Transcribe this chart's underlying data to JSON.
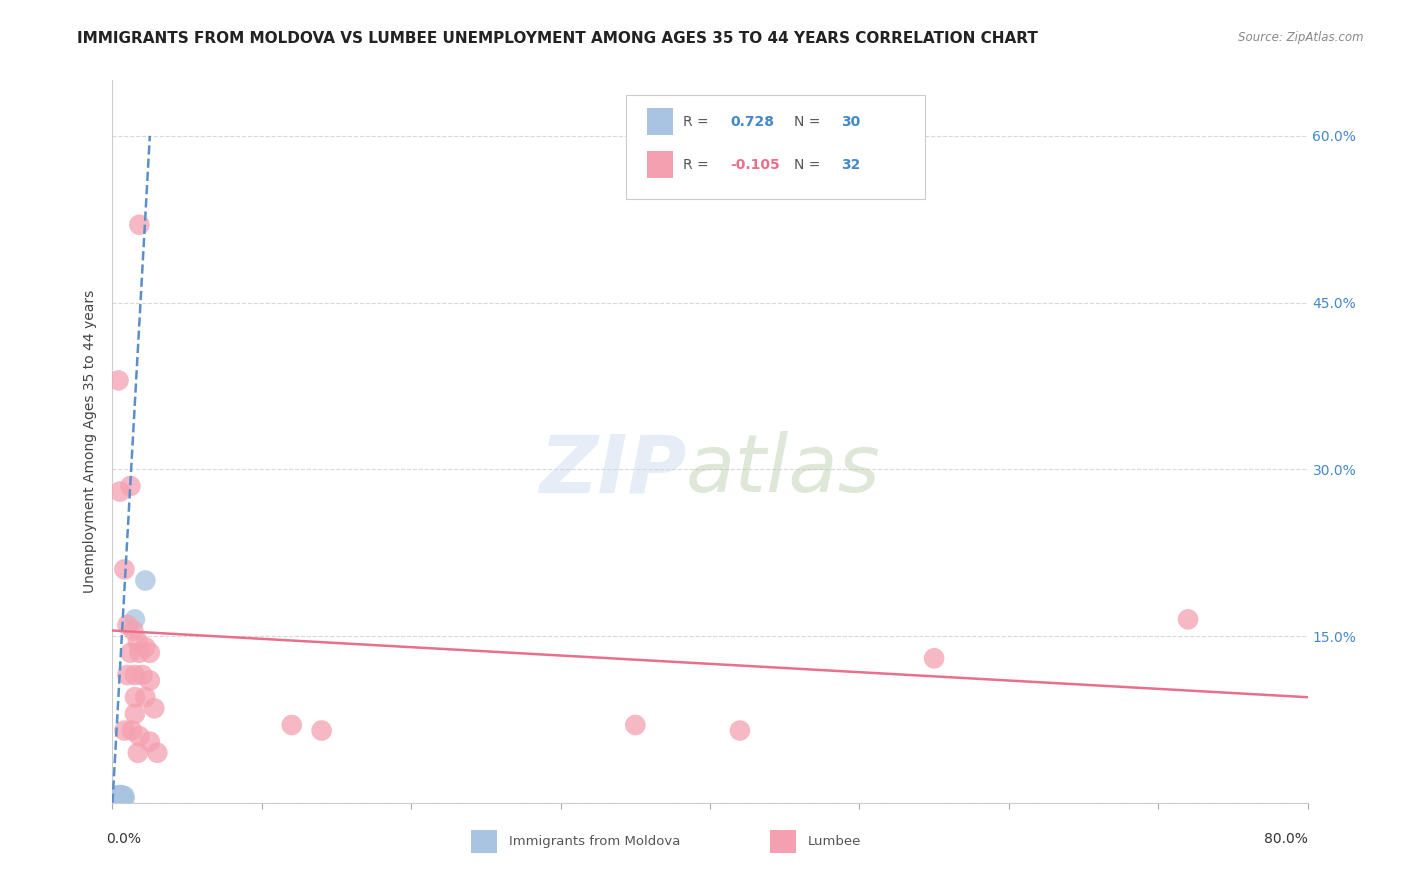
{
  "title": "IMMIGRANTS FROM MOLDOVA VS LUMBEE UNEMPLOYMENT AMONG AGES 35 TO 44 YEARS CORRELATION CHART",
  "source": "Source: ZipAtlas.com",
  "ylabel": "Unemployment Among Ages 35 to 44 years",
  "xlim": [
    0.0,
    0.8
  ],
  "ylim": [
    0.0,
    0.65
  ],
  "yticks": [
    0.0,
    0.15,
    0.3,
    0.45,
    0.6
  ],
  "ytick_labels": [
    "",
    "15.0%",
    "30.0%",
    "45.0%",
    "60.0%"
  ],
  "legend1_r": "0.728",
  "legend1_n": "30",
  "legend2_r": "-0.105",
  "legend2_n": "32",
  "moldova_color": "#a8c4e0",
  "lumbee_color": "#f4a0b0",
  "moldova_line_color": "#5b8fc9",
  "lumbee_line_color": "#e8708a",
  "moldova_scatter": [
    [
      0.001,
      0.002
    ],
    [
      0.001,
      0.003
    ],
    [
      0.002,
      0.002
    ],
    [
      0.002,
      0.003
    ],
    [
      0.002,
      0.004
    ],
    [
      0.002,
      0.005
    ],
    [
      0.003,
      0.002
    ],
    [
      0.003,
      0.003
    ],
    [
      0.003,
      0.004
    ],
    [
      0.003,
      0.005
    ],
    [
      0.003,
      0.006
    ],
    [
      0.004,
      0.003
    ],
    [
      0.004,
      0.004
    ],
    [
      0.004,
      0.005
    ],
    [
      0.004,
      0.006
    ],
    [
      0.004,
      0.007
    ],
    [
      0.005,
      0.003
    ],
    [
      0.005,
      0.004
    ],
    [
      0.005,
      0.005
    ],
    [
      0.005,
      0.006
    ],
    [
      0.006,
      0.004
    ],
    [
      0.006,
      0.005
    ],
    [
      0.006,
      0.006
    ],
    [
      0.006,
      0.007
    ],
    [
      0.007,
      0.005
    ],
    [
      0.007,
      0.006
    ],
    [
      0.008,
      0.004
    ],
    [
      0.008,
      0.006
    ],
    [
      0.015,
      0.165
    ],
    [
      0.022,
      0.2
    ]
  ],
  "lumbee_scatter": [
    [
      0.004,
      0.38
    ],
    [
      0.018,
      0.52
    ],
    [
      0.005,
      0.28
    ],
    [
      0.012,
      0.285
    ],
    [
      0.008,
      0.21
    ],
    [
      0.01,
      0.16
    ],
    [
      0.014,
      0.155
    ],
    [
      0.017,
      0.145
    ],
    [
      0.012,
      0.135
    ],
    [
      0.018,
      0.135
    ],
    [
      0.022,
      0.14
    ],
    [
      0.025,
      0.135
    ],
    [
      0.01,
      0.115
    ],
    [
      0.015,
      0.115
    ],
    [
      0.02,
      0.115
    ],
    [
      0.025,
      0.11
    ],
    [
      0.015,
      0.095
    ],
    [
      0.022,
      0.095
    ],
    [
      0.028,
      0.085
    ],
    [
      0.015,
      0.08
    ],
    [
      0.008,
      0.065
    ],
    [
      0.013,
      0.065
    ],
    [
      0.018,
      0.06
    ],
    [
      0.025,
      0.055
    ],
    [
      0.017,
      0.045
    ],
    [
      0.03,
      0.045
    ],
    [
      0.12,
      0.07
    ],
    [
      0.14,
      0.065
    ],
    [
      0.35,
      0.07
    ],
    [
      0.42,
      0.065
    ],
    [
      0.55,
      0.13
    ],
    [
      0.72,
      0.165
    ]
  ],
  "moldova_trendline": [
    [
      0.0,
      0.0
    ],
    [
      0.025,
      0.6
    ]
  ],
  "lumbee_trendline": [
    [
      0.0,
      0.155
    ],
    [
      0.8,
      0.095
    ]
  ],
  "grid_color": "#d8d8d8",
  "background_color": "#ffffff",
  "title_fontsize": 11,
  "axis_fontsize": 10,
  "tick_fontsize": 10,
  "source_text": "Source: ZipAtlas.com"
}
